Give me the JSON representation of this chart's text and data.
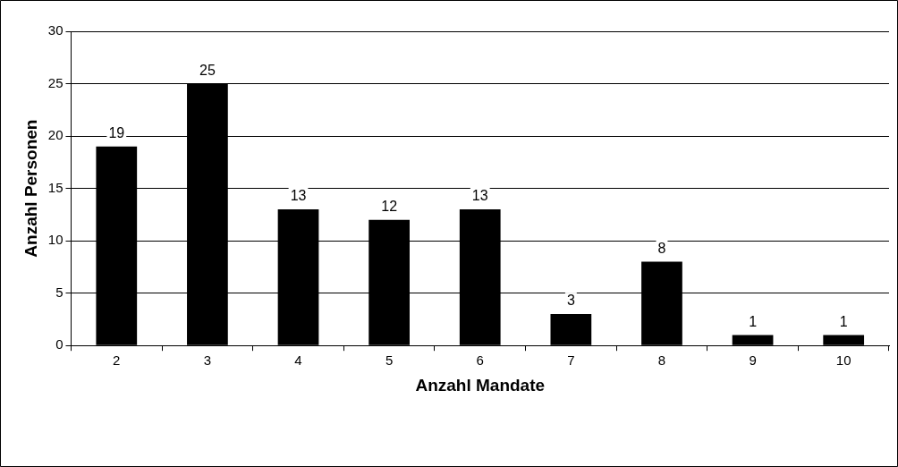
{
  "chart_data": {
    "type": "bar",
    "xlabel": "Anzahl Mandate",
    "ylabel": "Anzahl Personen",
    "categories": [
      "2",
      "3",
      "4",
      "5",
      "6",
      "7",
      "8",
      "9",
      "10"
    ],
    "values": [
      19,
      25,
      13,
      12,
      13,
      3,
      8,
      1,
      1
    ],
    "color": "#000000",
    "ylim": [
      0,
      30
    ],
    "yticks": [
      0,
      5,
      10,
      15,
      20,
      25,
      30
    ],
    "grid": "y",
    "legend": false,
    "data_labels": true
  }
}
